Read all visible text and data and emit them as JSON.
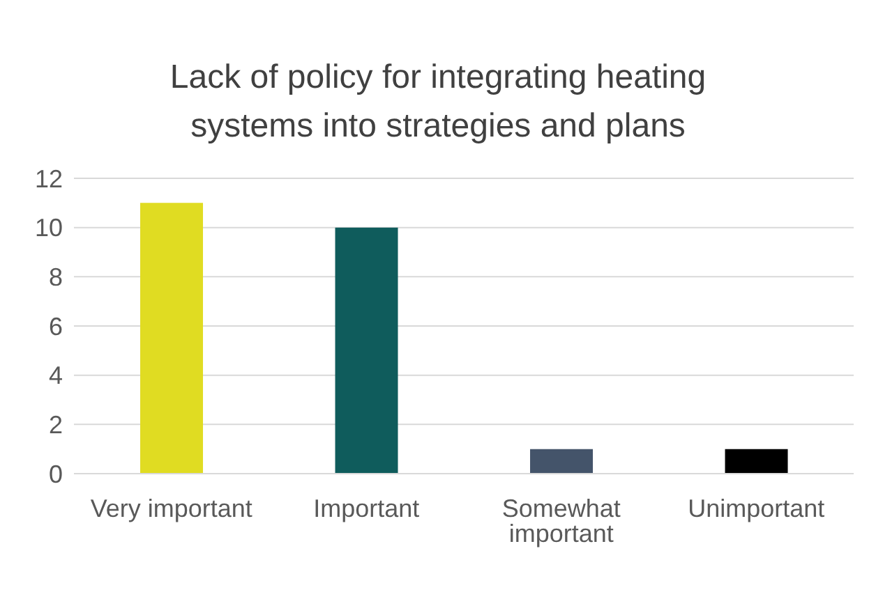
{
  "chart_data": {
    "type": "bar",
    "title": "Lack of policy for integrating heating systems into strategies and plans",
    "categories": [
      "Very important",
      "Important",
      "Somewhat important",
      "Unimportant"
    ],
    "values": [
      11,
      10,
      1,
      1
    ],
    "colors": [
      "#e0dc22",
      "#0f5c5c",
      "#44546a",
      "#000000"
    ],
    "ylim": [
      0,
      12
    ],
    "yticks": [
      0,
      2,
      4,
      6,
      8,
      10,
      12
    ],
    "grid": "y"
  }
}
